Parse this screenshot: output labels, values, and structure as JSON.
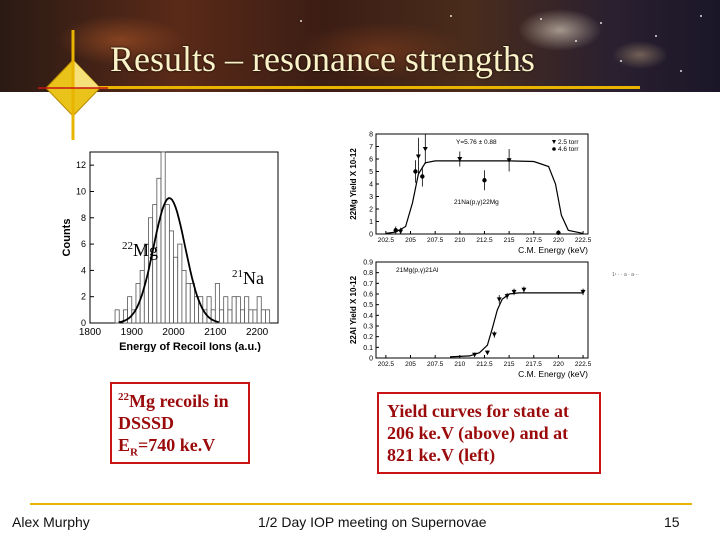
{
  "slide": {
    "title": "Results – resonance strengths",
    "colors": {
      "title": "#fbf2c8",
      "accent_line": "#e8b400",
      "box_border": "#c81414",
      "box_text": "#9b0b0b"
    }
  },
  "spectrum_labels": {
    "mg22": {
      "mass": "22",
      "element": "Mg"
    },
    "na21": {
      "mass": "21",
      "element": "Na"
    }
  },
  "caption_left": {
    "line1_mass": "22",
    "line1_text": "Mg recoils in",
    "line2": "DSSSD",
    "line3_prefix": "E",
    "line3_sub": "R",
    "line3_suffix": "=740 ke.V"
  },
  "caption_right": {
    "lines": [
      "Yield curves for state at",
      "206 ke.V (above) and at",
      "821 ke.V (left)"
    ]
  },
  "footer": {
    "left": "Alex Murphy",
    "center": "1/2 Day IOP meeting on Supernovae",
    "right": "15"
  },
  "stray_text": "1¹ · · a  · a···",
  "chart_data": [
    {
      "type": "bar",
      "title": "",
      "xlabel": "Energy of Recoil Ions (a.u.)",
      "ylabel": "Counts",
      "xticks": [
        "1800",
        "1900",
        "2000",
        "2100",
        "2200"
      ],
      "yticks": [
        "0",
        "2",
        "4",
        "6",
        "8",
        "10",
        "12"
      ],
      "xlim": [
        1800,
        2250
      ],
      "ylim": [
        0,
        13
      ],
      "x": [
        1865,
        1875,
        1885,
        1895,
        1905,
        1915,
        1925,
        1935,
        1945,
        1955,
        1965,
        1975,
        1985,
        1995,
        2005,
        2015,
        2025,
        2035,
        2045,
        2055,
        2065,
        2075,
        2085,
        2095,
        2105,
        2115,
        2125,
        2135,
        2145,
        2155,
        2165,
        2175,
        2185,
        2195,
        2205,
        2215,
        2225,
        2235
      ],
      "values": [
        1,
        0,
        1,
        2,
        1,
        3,
        4,
        6,
        8,
        9,
        11,
        13,
        9,
        7,
        5,
        6,
        4,
        3,
        3,
        2,
        2,
        1,
        2,
        1,
        3,
        1,
        2,
        1,
        2,
        2,
        1,
        2,
        1,
        1,
        2,
        1,
        1,
        0
      ],
      "fit": {
        "center": 1990,
        "sigma": 38,
        "amplitude": 9.5
      }
    },
    {
      "type": "scatter",
      "title": "",
      "xlabel": "C.M. Energy (keV)",
      "ylabel": "22Mg Yield X 10-12",
      "xticks": [
        "202.5",
        "205",
        "207.5",
        "210",
        "212.5",
        "215",
        "217.5",
        "220",
        "222.5"
      ],
      "yticks": [
        "0",
        "1",
        "2",
        "3",
        "4",
        "5",
        "6",
        "7",
        "8"
      ],
      "xlim": [
        201.5,
        223
      ],
      "ylim": [
        0,
        8
      ],
      "annotations": [
        "Y=5.76 ± 0.88",
        "21Na(p,γ)22Mg"
      ],
      "series": [
        {
          "name": "2.5 torr",
          "x": [
            204,
            205.8,
            206.5,
            210,
            215
          ],
          "y": [
            0.2,
            6.2,
            6.8,
            6.0,
            5.9
          ],
          "err": [
            0.3,
            1.5,
            1.2,
            0.6,
            0.9
          ]
        },
        {
          "name": "4.6 torr",
          "x": [
            203.5,
            205.5,
            206.2,
            212.5,
            220
          ],
          "y": [
            0.3,
            5.0,
            4.6,
            4.3,
            0.1
          ],
          "err": [
            0.3,
            0.9,
            0.8,
            0.8,
            0.2
          ]
        }
      ],
      "fit": {
        "x": [
          202.5,
          203.5,
          204.5,
          205.2,
          205.8,
          206.5,
          207.5,
          210,
          215,
          217.5,
          219,
          219.7,
          220.3,
          221,
          222.5
        ],
        "y": [
          0.05,
          0.15,
          0.6,
          2.5,
          4.8,
          5.7,
          5.85,
          5.85,
          5.85,
          5.8,
          5.4,
          4.0,
          1.5,
          0.3,
          0.05
        ]
      }
    },
    {
      "type": "scatter",
      "title": "",
      "xlabel": "C.M. Energy (keV)",
      "ylabel": "22Al Yield X 10-12",
      "xticks": [
        "202.5",
        "205",
        "207.5",
        "210",
        "212.5",
        "215",
        "217.5",
        "220",
        "222.5"
      ],
      "yticks": [
        "0",
        "0.1",
        "0.2",
        "0.3",
        "0.4",
        "0.5",
        "0.6",
        "0.7",
        "0.8",
        "0.9"
      ],
      "xlim": [
        201.5,
        223
      ],
      "ylim": [
        0,
        0.9
      ],
      "annotations": [
        "21Mg(p,γ)21Al"
      ],
      "series": [
        {
          "name": "data",
          "x": [
            211.5,
            212.8,
            213.5,
            214.0,
            214.8,
            215.5,
            216.5,
            222.5
          ],
          "y": [
            0.03,
            0.05,
            0.22,
            0.55,
            0.58,
            0.62,
            0.64,
            0.62
          ],
          "err": [
            0.02,
            0.02,
            0.03,
            0.04,
            0.03,
            0.03,
            0.03,
            0.03
          ]
        }
      ],
      "fit": {
        "x": [
          209,
          211,
          212,
          212.8,
          213.3,
          213.8,
          214.3,
          215,
          216,
          218,
          220,
          222.5
        ],
        "y": [
          0.01,
          0.02,
          0.05,
          0.12,
          0.28,
          0.45,
          0.55,
          0.6,
          0.61,
          0.61,
          0.61,
          0.61
        ]
      }
    }
  ]
}
